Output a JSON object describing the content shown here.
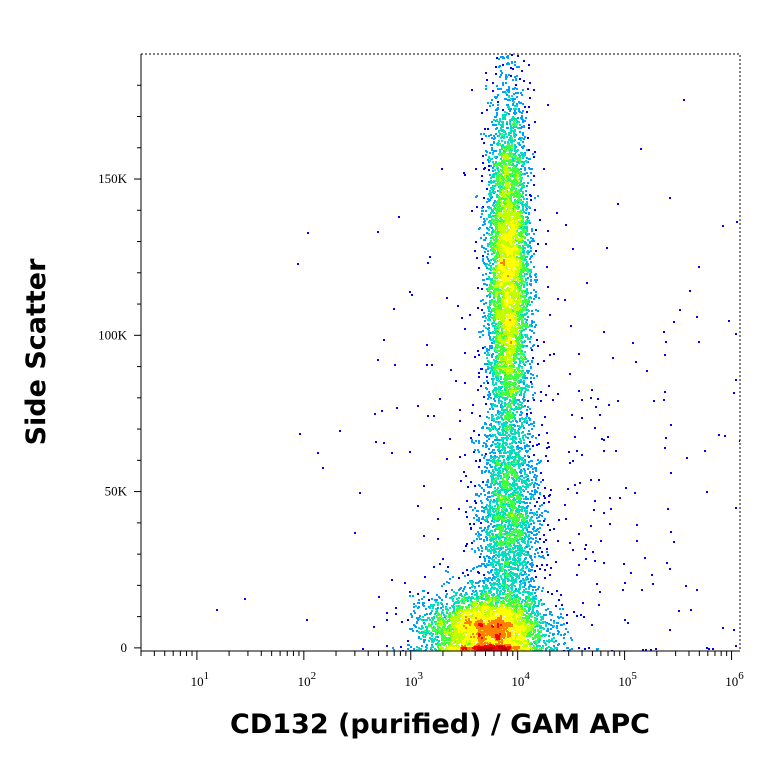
{
  "chart_data": {
    "type": "scatter",
    "subtype": "flow-cytometry density dot plot",
    "xlabel": "CD132 (purified) / GAM APC",
    "ylabel": "Side Scatter",
    "x_scale": "log",
    "xlim": [
      3,
      1200000
    ],
    "ylim": [
      -1000,
      190000
    ],
    "x_ticks": [
      {
        "value": 10,
        "base": "10",
        "exp": "1"
      },
      {
        "value": 100,
        "base": "10",
        "exp": "2"
      },
      {
        "value": 1000,
        "base": "10",
        "exp": "3"
      },
      {
        "value": 10000,
        "base": "10",
        "exp": "4"
      },
      {
        "value": 100000,
        "base": "10",
        "exp": "5"
      },
      {
        "value": 1000000,
        "base": "10",
        "exp": "6"
      }
    ],
    "y_ticks": [
      {
        "value": 0,
        "label": "0"
      },
      {
        "value": 50000,
        "label": "50K"
      },
      {
        "value": 100000,
        "label": "100K"
      },
      {
        "value": 150000,
        "label": "150K"
      }
    ],
    "grid": false,
    "legend": "none",
    "colormap": [
      "#0000ff",
      "#00a0ff",
      "#00e0c0",
      "#40ff40",
      "#c0ff00",
      "#ffff00",
      "#ff8000",
      "#ff0000",
      "#c00000"
    ],
    "populations": [
      {
        "name": "low-SSC cluster",
        "x_center": 5000,
        "x_spread_decades": 0.28,
        "y_center": 6000,
        "y_spread": 6000,
        "relative_count": 6000,
        "peak_density": "high"
      },
      {
        "name": "high-SSC cluster",
        "x_center": 8000,
        "x_spread_decades": 0.1,
        "y_center": 120000,
        "y_spread": 28000,
        "relative_count": 7000,
        "peak_density": "medium"
      },
      {
        "name": "intermediate bridge",
        "x_center": 8000,
        "x_spread_decades": 0.15,
        "y_center": 40000,
        "y_spread": 18000,
        "relative_count": 2500,
        "peak_density": "low"
      },
      {
        "name": "scattered events",
        "x_center": 20000,
        "x_spread_decades": 1.0,
        "y_center": 60000,
        "y_spread": 50000,
        "relative_count": 350,
        "peak_density": "low"
      }
    ]
  }
}
